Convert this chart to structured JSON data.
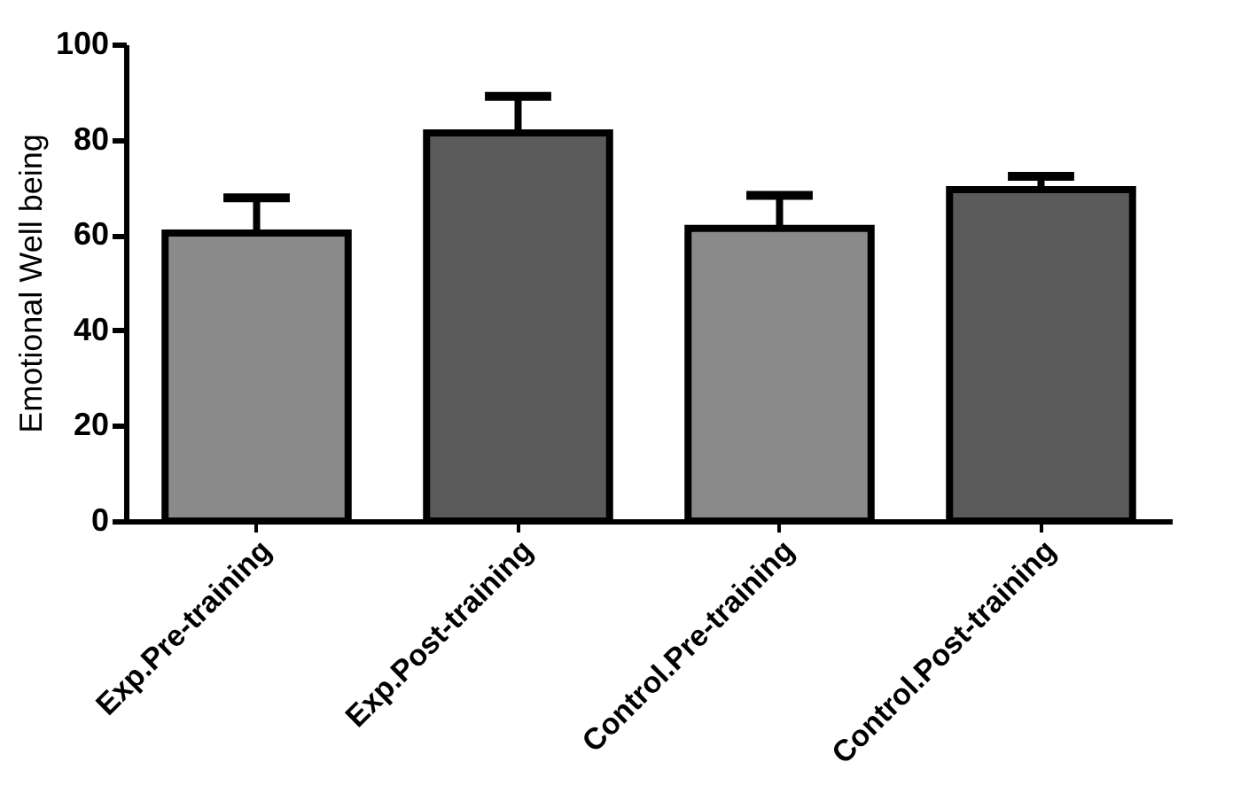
{
  "chart_data": {
    "type": "bar",
    "ylabel": "Emotional Well being",
    "categories": [
      "Exp.Pre-training",
      "Exp.Post-training",
      "Control.Pre-training",
      "Control.Post-training"
    ],
    "values": [
      60.4,
      81.4,
      61.4,
      69.5
    ],
    "errors": [
      7.4,
      7.7,
      6.9,
      2.8
    ],
    "colors": [
      "#8a8a8a",
      "#5a5a5a",
      "#8a8a8a",
      "#5a5a5a"
    ],
    "ylim": [
      0,
      100
    ],
    "yticks": [
      0,
      20,
      40,
      60,
      80,
      100
    ],
    "grid": false
  }
}
